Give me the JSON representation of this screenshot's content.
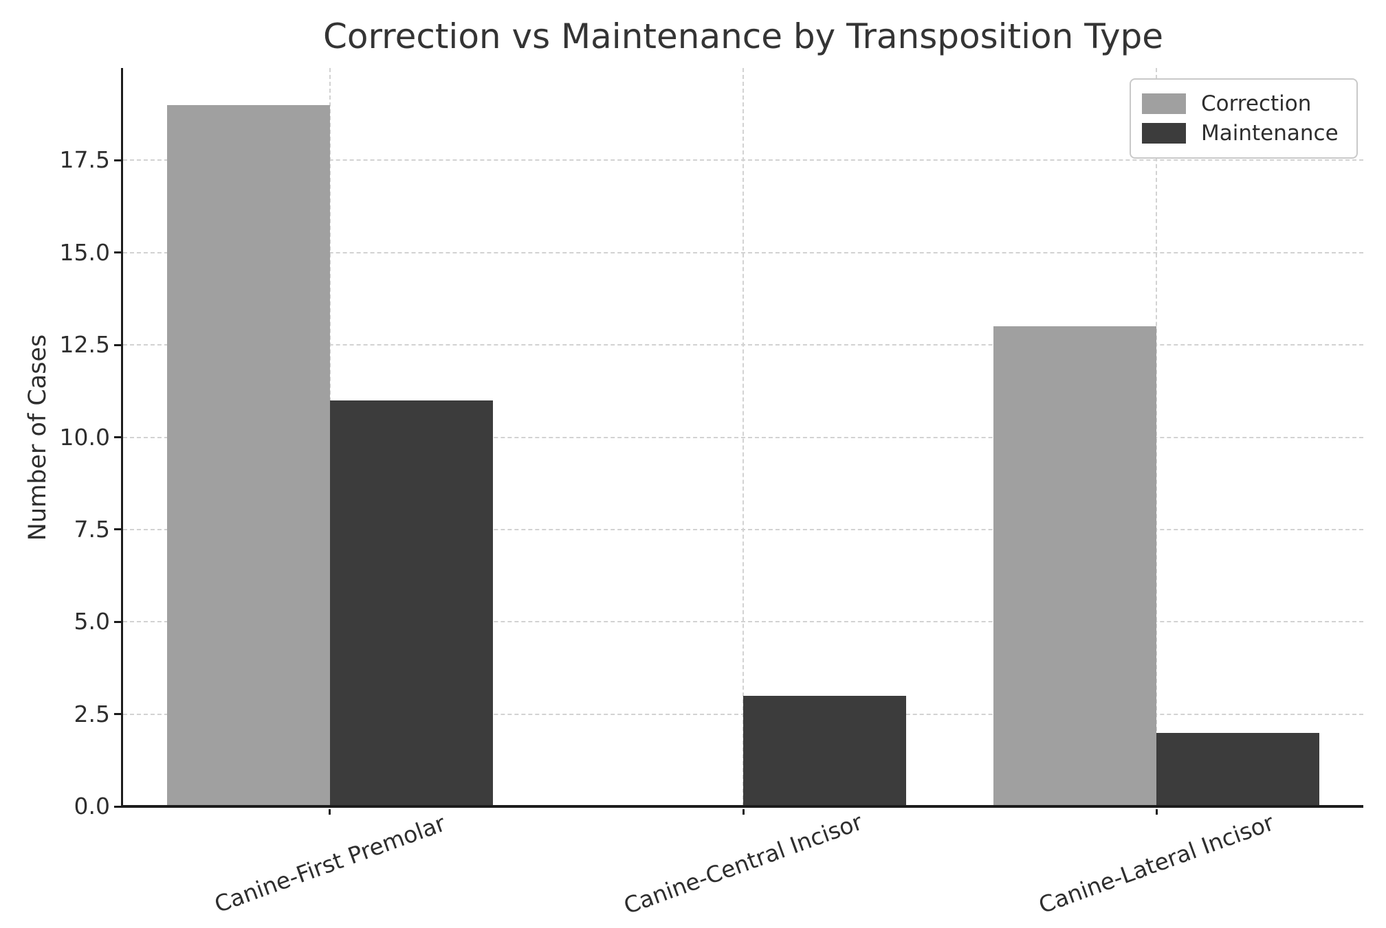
{
  "figure": {
    "background": "#ffffff"
  },
  "chart_data": {
    "type": "bar",
    "title": "Correction vs Maintenance by Transposition Type",
    "categories": [
      "Canine-First Premolar",
      "Canine-Central Incisor",
      "Canine-Lateral Incisor"
    ],
    "series": [
      {
        "name": "Correction",
        "color": "#a0a0a0",
        "values": [
          19,
          0,
          13
        ]
      },
      {
        "name": "Maintenance",
        "color": "#3c3c3c",
        "values": [
          11,
          3,
          2
        ]
      }
    ],
    "xlabel": "",
    "ylabel": "Number of Cases",
    "ylim": [
      0,
      20
    ],
    "yticks": [
      0.0,
      2.5,
      5.0,
      7.5,
      10.0,
      12.5,
      15.0,
      17.5
    ],
    "ytick_labels": [
      "0.0",
      "2.5",
      "5.0",
      "7.5",
      "10.0",
      "12.5",
      "15.0",
      "17.5"
    ],
    "grid": "dashed-both-axes",
    "grid_color": "#d2d2d2",
    "spine_color": "#1c1c1c",
    "text_color": "#2e2e2e",
    "legend_position": "upper right",
    "legend_border_color": "#c9c9c9",
    "xtick_rotation_deg": 20
  }
}
